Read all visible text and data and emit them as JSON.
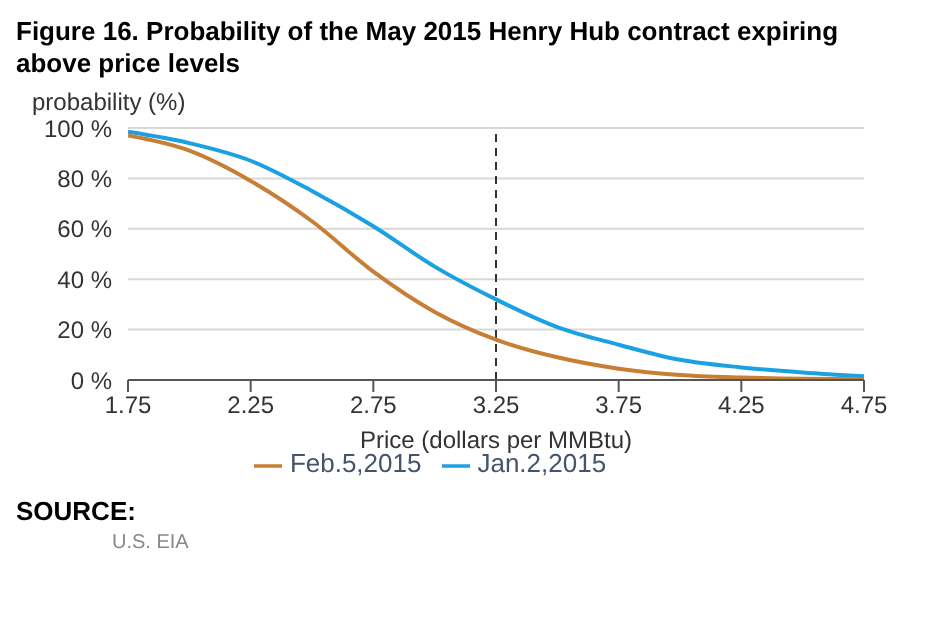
{
  "chart_data": {
    "type": "line",
    "title": "Figure 16. Probability of the May 2015 Henry Hub contract expiring above price levels",
    "xlabel": "Price (dollars per MMBtu)",
    "ylabel": "probability (%)",
    "x": [
      1.75,
      2.0,
      2.25,
      2.5,
      2.75,
      3.0,
      3.25,
      3.5,
      3.75,
      4.0,
      4.25,
      4.5,
      4.75
    ],
    "series": [
      {
        "name": "Jan.2,2015",
        "color": "#1ba1e2",
        "values": [
          98.5,
          94,
          87,
          75,
          61,
          45,
          32,
          21,
          14,
          8,
          5,
          3,
          1.5
        ]
      },
      {
        "name": "Feb.5,2015",
        "color": "#c77f36",
        "values": [
          97,
          91,
          79,
          63,
          43,
          27,
          16,
          9,
          4.5,
          2,
          1,
          0.5,
          0.3
        ]
      }
    ],
    "xlim": [
      1.75,
      4.75
    ],
    "xticks": [
      1.75,
      2.25,
      2.75,
      3.25,
      3.75,
      4.25,
      4.75
    ],
    "ylim": [
      0,
      100
    ],
    "yticks": [
      {
        "value": 0,
        "label": "0 %"
      },
      {
        "value": 20,
        "label": "20 %"
      },
      {
        "value": 40,
        "label": "40 %"
      },
      {
        "value": 60,
        "label": "60 %"
      },
      {
        "value": 80,
        "label": "80 %"
      },
      {
        "value": 100,
        "label": "100 %"
      }
    ],
    "ref_lines": [
      {
        "axis": "x",
        "value": 3.25,
        "color": "#333333",
        "line_style": "dashed"
      }
    ],
    "grid": "y",
    "legend": "bottom",
    "marker": "none",
    "line_style": "solid",
    "annotations": [
      "SOURCE:",
      "U.S. EIA"
    ]
  }
}
